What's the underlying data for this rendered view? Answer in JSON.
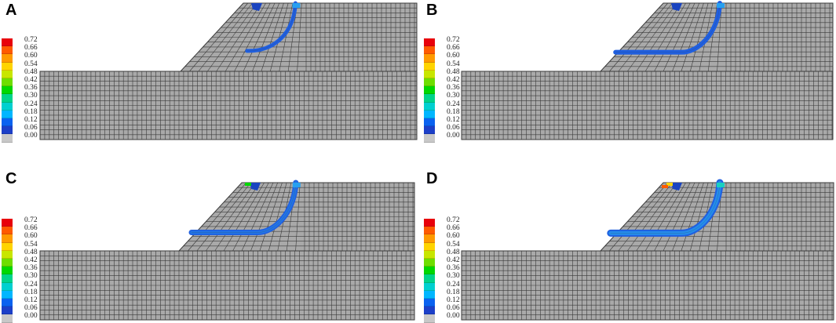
{
  "figure": {
    "panels": [
      {
        "letter": "A"
      },
      {
        "letter": "B"
      },
      {
        "letter": "C"
      },
      {
        "letter": "D"
      }
    ]
  },
  "legend": {
    "labels": [
      "0.72",
      "0.66",
      "0.60",
      "0.54",
      "0.48",
      "0.42",
      "0.36",
      "0.30",
      "0.24",
      "0.18",
      "0.12",
      "0.06",
      "0.00"
    ],
    "colors": [
      "#e8000b",
      "#ff5a00",
      "#ff9a00",
      "#ffd400",
      "#c8e600",
      "#6ede00",
      "#00d800",
      "#00d48a",
      "#00d0d0",
      "#00b6ff",
      "#0a62f0",
      "#1c3fc8",
      "#c8c8c8"
    ]
  },
  "colors": {
    "mesh_fill": "#a9a9a9",
    "mesh_line": "#3a3a3a",
    "band_main": "#1f5fe0",
    "band_light": "#27a0f0",
    "band_edge": "#18d0c0"
  }
}
